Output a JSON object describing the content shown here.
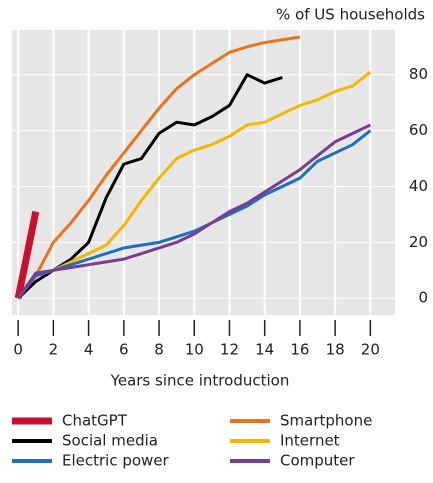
{
  "chart_data": {
    "type": "line",
    "y_label": "% of US households",
    "x_label": "Years since introduction",
    "xlim": [
      -0.35,
      21.4
    ],
    "ylim": [
      -6,
      96
    ],
    "xticks": [
      0,
      2,
      4,
      6,
      8,
      10,
      12,
      14,
      16,
      18,
      20
    ],
    "yticks": [
      0,
      20,
      40,
      60,
      80
    ],
    "grid": true,
    "series": [
      {
        "name": "ChatGPT",
        "color": "#c8102e",
        "x": [
          0,
          1
        ],
        "values": [
          0,
          31
        ]
      },
      {
        "name": "Smartphone",
        "color": "#e8751a",
        "x": [
          0,
          1,
          2,
          3,
          4,
          5,
          6,
          7,
          8,
          9,
          10,
          11,
          12,
          13,
          14,
          15,
          16
        ],
        "values": [
          0,
          8,
          20,
          27,
          35,
          44,
          52,
          60,
          68,
          75,
          80,
          84,
          88,
          90,
          91.5,
          92.5,
          93.5
        ]
      },
      {
        "name": "Social media",
        "color": "#000000",
        "x": [
          0,
          1,
          2,
          3,
          4,
          5,
          6,
          7,
          8,
          9,
          10,
          11,
          12,
          13,
          14,
          15
        ],
        "values": [
          0,
          6,
          10,
          14,
          20,
          36,
          48,
          50,
          59,
          63,
          62,
          65,
          69,
          80,
          77,
          79
        ]
      },
      {
        "name": "Internet",
        "color": "#f5b800",
        "x": [
          0,
          1,
          2,
          3,
          4,
          5,
          6,
          7,
          8,
          9,
          10,
          11,
          12,
          13,
          14,
          15,
          16,
          17,
          18,
          19,
          20
        ],
        "values": [
          0,
          8,
          10,
          13,
          16,
          19,
          26,
          35,
          43,
          50,
          53,
          55,
          58,
          62,
          63,
          66,
          69,
          71,
          74,
          76,
          81
        ]
      },
      {
        "name": "Electric power",
        "color": "#1f6fbf",
        "x": [
          0,
          1,
          2,
          3,
          4,
          5,
          6,
          7,
          8,
          9,
          10,
          11,
          12,
          13,
          14,
          15,
          16,
          17,
          18,
          19,
          20
        ],
        "values": [
          0,
          8,
          10,
          12,
          14,
          16,
          18,
          19,
          20,
          22,
          24,
          27,
          30,
          33,
          37,
          40,
          43,
          49,
          52,
          55,
          60
        ]
      },
      {
        "name": "Computer",
        "color": "#7b3d91",
        "x": [
          0,
          1,
          2,
          3,
          4,
          5,
          6,
          7,
          8,
          9,
          10,
          11,
          12,
          13,
          14,
          15,
          16,
          17,
          18,
          19,
          20
        ],
        "values": [
          0,
          9,
          10,
          11,
          12,
          13,
          14,
          16,
          18,
          20,
          23,
          27,
          31,
          34,
          38,
          42,
          46,
          51,
          56,
          59,
          62
        ]
      }
    ]
  }
}
